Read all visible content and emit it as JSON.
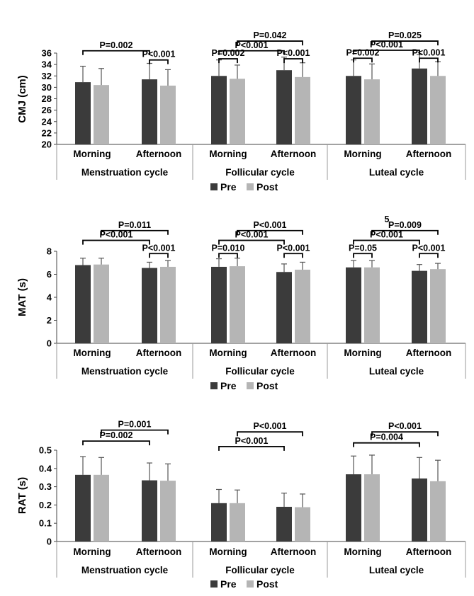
{
  "colors": {
    "pre": "#3b3b3b",
    "post": "#b5b5b5",
    "axis": "#444444",
    "bracket": "#000000"
  },
  "chart_data": [
    {
      "type": "bar",
      "ylabel": "CMJ (cm)",
      "ylim": [
        20,
        36
      ],
      "yticks": [
        "20",
        "22",
        "24",
        "26",
        "28",
        "30",
        "32",
        "34",
        "36"
      ],
      "categories": [
        "Morning",
        "Afternoon",
        "Morning",
        "Afternoon",
        "Morning",
        "Afternoon"
      ],
      "groups": [
        "Menstruation cycle",
        "Follicular cycle",
        "Luteal cycle"
      ],
      "series": [
        {
          "name": "Pre",
          "values": [
            30.9,
            31.4,
            32.0,
            33.0,
            32.0,
            33.3
          ],
          "errors": [
            2.8,
            2.8,
            2.8,
            2.3,
            2.8,
            2.4
          ]
        },
        {
          "name": "Post",
          "values": [
            30.4,
            30.3,
            31.5,
            31.8,
            31.4,
            32.0
          ],
          "errors": [
            2.9,
            2.8,
            2.4,
            2.5,
            2.7,
            2.5
          ]
        }
      ],
      "annotations": [
        {
          "text": "P=0.002",
          "from": [
            0,
            0
          ],
          "to": [
            1,
            0
          ],
          "level": 36.4
        },
        {
          "text": "P<0.001",
          "from": [
            1,
            0
          ],
          "to": [
            1,
            1
          ],
          "level": 34.8
        },
        {
          "text": "P=0.042",
          "from": [
            2,
            1
          ],
          "to": [
            3,
            1
          ],
          "level": 38.1
        },
        {
          "text": "P<0.001",
          "from": [
            2,
            0
          ],
          "to": [
            3,
            0
          ],
          "level": 36.4
        },
        {
          "text": "P=0.002",
          "from": [
            2,
            0
          ],
          "to": [
            2,
            1
          ],
          "level": 35.0
        },
        {
          "text": "P<0.001",
          "from": [
            3,
            0
          ],
          "to": [
            3,
            1
          ],
          "level": 35.0
        },
        {
          "text": "P=0.025",
          "from": [
            4,
            1
          ],
          "to": [
            5,
            1
          ],
          "level": 38.1
        },
        {
          "text": "P<0.001",
          "from": [
            4,
            0
          ],
          "to": [
            5,
            0
          ],
          "level": 36.5
        },
        {
          "text": "P=0.002",
          "from": [
            4,
            0
          ],
          "to": [
            4,
            1
          ],
          "level": 35.1
        },
        {
          "text": "P<0.001",
          "from": [
            5,
            0
          ],
          "to": [
            5,
            1
          ],
          "level": 35.1
        }
      ],
      "legend": [
        "Pre",
        "Post"
      ]
    },
    {
      "type": "bar",
      "ylabel": "MAT (s)",
      "ylim": [
        0,
        8
      ],
      "yticks": [
        "0",
        "2",
        "4",
        "6",
        "8"
      ],
      "categories": [
        "Morning",
        "Afternoon",
        "Morning",
        "Afternoon",
        "Morning",
        "Afternoon"
      ],
      "groups": [
        "Menstruation cycle",
        "Follicular cycle",
        "Luteal cycle"
      ],
      "series": [
        {
          "name": "Pre",
          "values": [
            6.8,
            6.55,
            6.65,
            6.2,
            6.6,
            6.3
          ],
          "errors": [
            0.6,
            0.5,
            0.7,
            0.7,
            0.6,
            0.55
          ]
        },
        {
          "name": "Post",
          "values": [
            6.85,
            6.65,
            6.7,
            6.4,
            6.6,
            6.45
          ],
          "errors": [
            0.55,
            0.55,
            0.7,
            0.65,
            0.6,
            0.5
          ]
        }
      ],
      "annotations": [
        {
          "text": "P=0.011",
          "from": [
            0,
            1
          ],
          "to": [
            1,
            1
          ],
          "level": 9.8
        },
        {
          "text": "P<0.001",
          "from": [
            0,
            0
          ],
          "to": [
            1,
            0
          ],
          "level": 8.95
        },
        {
          "text": "P<0.001",
          "from": [
            1,
            0
          ],
          "to": [
            1,
            1
          ],
          "level": 7.8
        },
        {
          "text": "P<0.001",
          "from": [
            2,
            1
          ],
          "to": [
            3,
            1
          ],
          "level": 9.8
        },
        {
          "text": "P<0.001",
          "from": [
            2,
            0
          ],
          "to": [
            3,
            0
          ],
          "level": 8.95
        },
        {
          "text": "P=0.010",
          "from": [
            2,
            0
          ],
          "to": [
            2,
            1
          ],
          "level": 7.8
        },
        {
          "text": "P<0.001",
          "from": [
            3,
            0
          ],
          "to": [
            3,
            1
          ],
          "level": 7.8
        },
        {
          "text": "P=0.009",
          "from": [
            4,
            1
          ],
          "to": [
            5,
            1
          ],
          "level": 9.8
        },
        {
          "text": "P<0.001",
          "from": [
            4,
            0
          ],
          "to": [
            5,
            0
          ],
          "level": 8.95
        },
        {
          "text": "P=0.05",
          "from": [
            4,
            0
          ],
          "to": [
            4,
            1
          ],
          "level": 7.8
        },
        {
          "text": "P<0.001",
          "from": [
            5,
            0
          ],
          "to": [
            5,
            1
          ],
          "level": 7.8
        }
      ],
      "stray_text": "5",
      "legend": [
        "Pre",
        "Post"
      ]
    },
    {
      "type": "bar",
      "ylabel": "RAT (s)",
      "ylim": [
        0,
        0.5
      ],
      "yticks": [
        "0",
        "0.1",
        "0.2",
        "0.3",
        "0.4",
        "0.5"
      ],
      "categories": [
        "Morning",
        "Afternoon",
        "Morning",
        "Afternoon",
        "Morning",
        "Afternoon"
      ],
      "groups": [
        "Menstruation cycle",
        "Follicular cycle",
        "Luteal cycle"
      ],
      "series": [
        {
          "name": "Pre",
          "values": [
            0.365,
            0.335,
            0.21,
            0.19,
            0.368,
            0.345
          ],
          "errors": [
            0.1,
            0.095,
            0.075,
            0.075,
            0.1,
            0.115
          ]
        },
        {
          "name": "Post",
          "values": [
            0.365,
            0.333,
            0.21,
            0.188,
            0.368,
            0.33
          ],
          "errors": [
            0.095,
            0.092,
            0.072,
            0.072,
            0.105,
            0.115
          ]
        }
      ],
      "annotations": [
        {
          "text": "P=0.001",
          "from": [
            0,
            1
          ],
          "to": [
            1,
            1
          ],
          "level": 0.61
        },
        {
          "text": "P=0.002",
          "from": [
            0,
            0
          ],
          "to": [
            1,
            0
          ],
          "level": 0.55
        },
        {
          "text": "P<0.001",
          "from": [
            2,
            1
          ],
          "to": [
            3,
            1
          ],
          "level": 0.6
        },
        {
          "text": "P<0.001",
          "from": [
            2,
            0
          ],
          "to": [
            3,
            0
          ],
          "level": 0.52
        },
        {
          "text": "P<0.001",
          "from": [
            4,
            1
          ],
          "to": [
            5,
            1
          ],
          "level": 0.6
        },
        {
          "text": "P=0.004",
          "from": [
            4,
            0
          ],
          "to": [
            5,
            0
          ],
          "level": 0.54
        }
      ],
      "legend": [
        "Pre",
        "Post"
      ]
    }
  ]
}
